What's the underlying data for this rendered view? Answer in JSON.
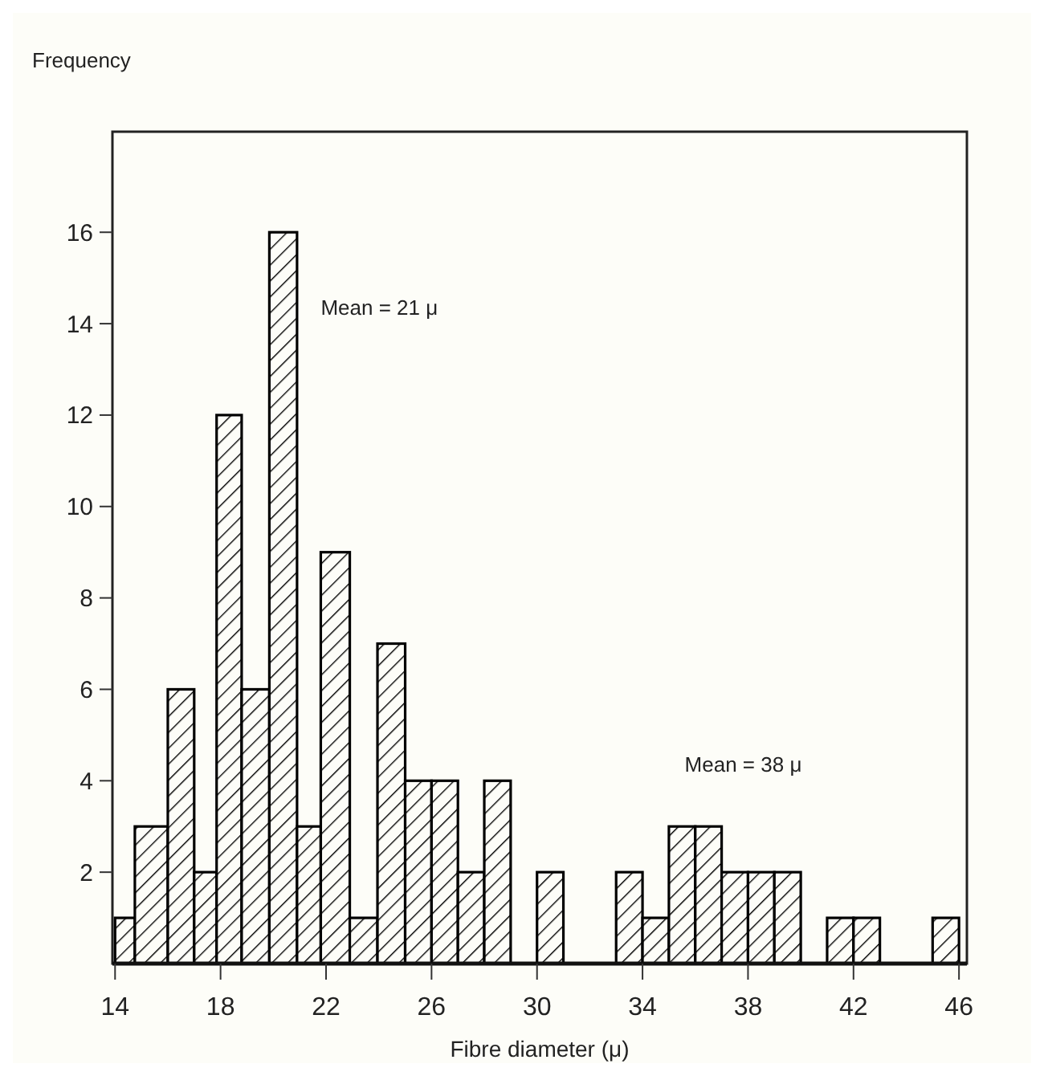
{
  "chart_data": {
    "type": "histogram",
    "xlabel": "Fibre diameter (μ)",
    "ylabel": "Frequency",
    "bins": [
      14,
      14.75,
      16,
      17,
      17.85,
      18.8,
      19.85,
      20.9,
      21.8,
      22.9,
      23.95,
      25,
      26,
      27,
      28,
      29,
      30,
      31,
      33,
      34,
      35,
      36,
      37,
      38,
      39,
      40,
      41,
      42,
      43,
      45,
      46
    ],
    "values": [
      1,
      3,
      6,
      2,
      12,
      6,
      16,
      3,
      9,
      1,
      7,
      4,
      4,
      2,
      4,
      0,
      2,
      0,
      2,
      1,
      3,
      3,
      2,
      2,
      2,
      0,
      1,
      1,
      0,
      1
    ],
    "color": "#000000",
    "xlim": [
      13.9,
      46.3
    ],
    "xticks": [
      14,
      18,
      22,
      26,
      30,
      34,
      38,
      42,
      46
    ],
    "ylim": [
      0,
      18.2
    ],
    "yticks": [
      2,
      4,
      6,
      8,
      10,
      12,
      14,
      16
    ],
    "annotations": [
      "Mean = 21 μ",
      "Mean = 38 μ"
    ],
    "grid": false
  }
}
